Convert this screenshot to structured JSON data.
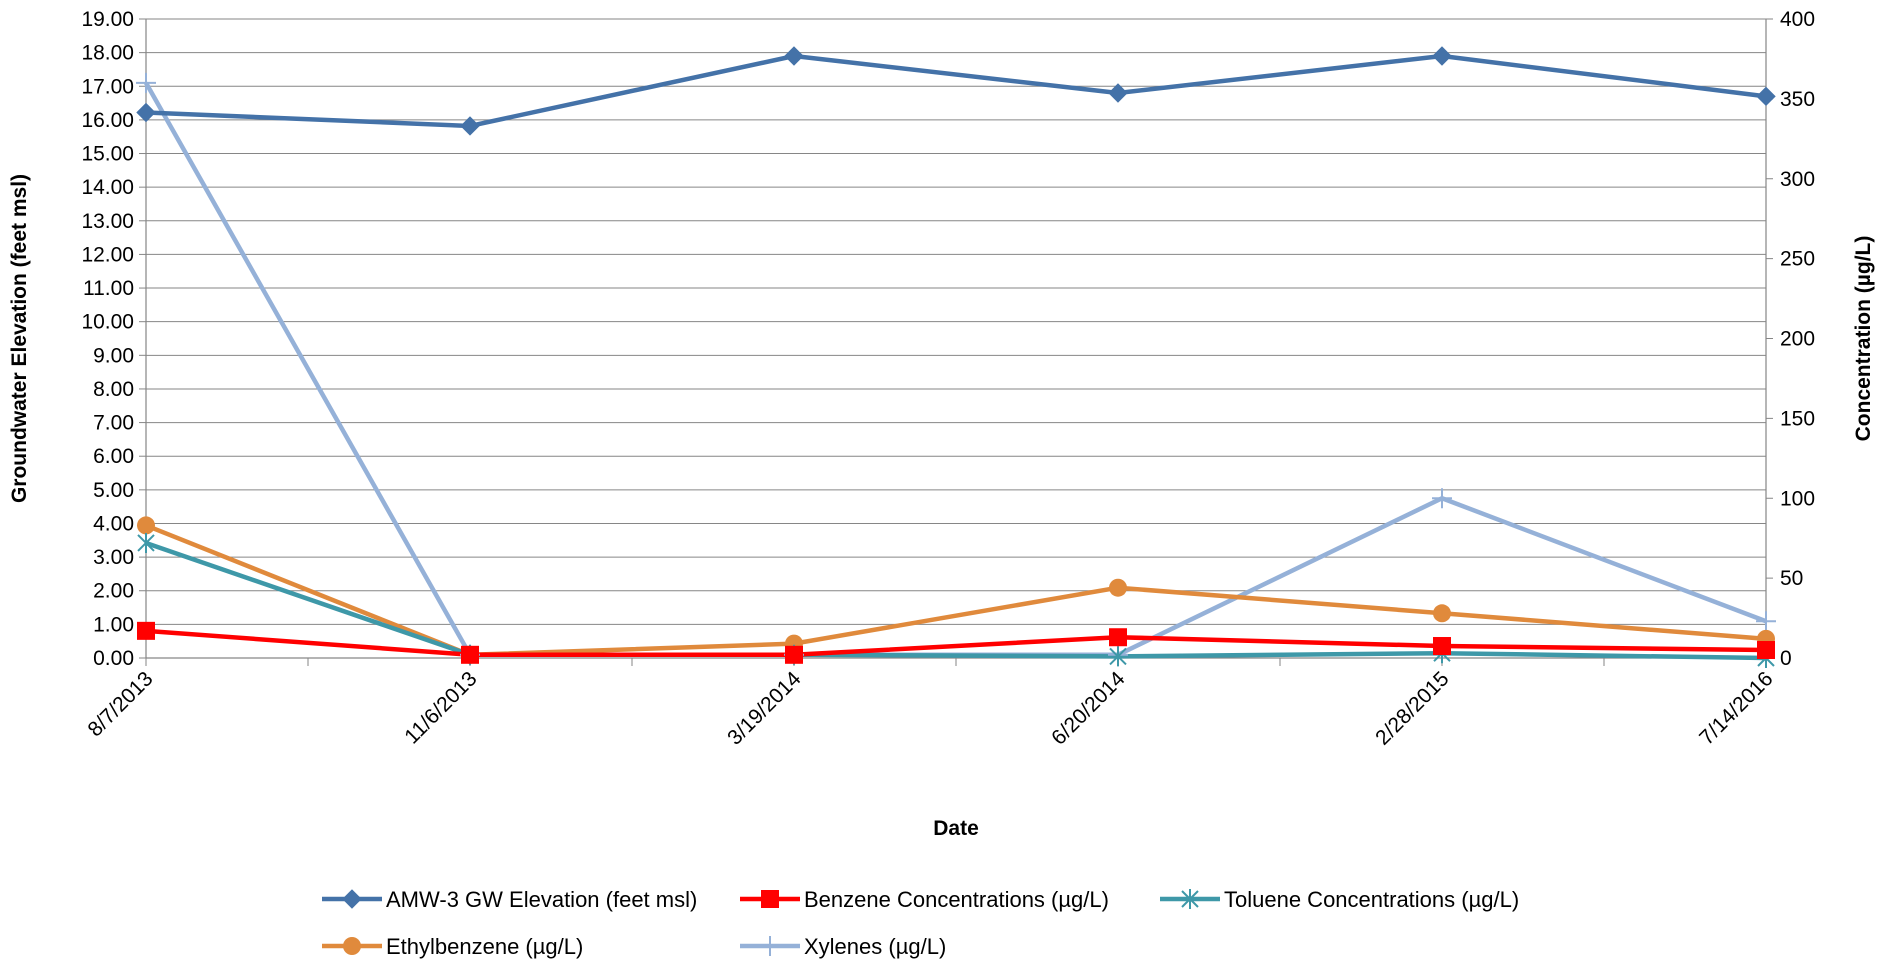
{
  "chart_data": {
    "type": "line",
    "xlabel": "Date",
    "ylabel_left": "Groundwater Elevation (feet msl)",
    "ylabel_right": "Concentration (µg/L)",
    "categories": [
      "8/7/2013",
      "11/6/2013",
      "3/19/2014",
      "6/20/2014",
      "2/28/2015",
      "7/14/2016"
    ],
    "y_left": {
      "range": [
        0,
        19
      ],
      "ticks": [
        "0.00",
        "1.00",
        "2.00",
        "3.00",
        "4.00",
        "5.00",
        "6.00",
        "7.00",
        "8.00",
        "9.00",
        "10.00",
        "11.00",
        "12.00",
        "13.00",
        "14.00",
        "15.00",
        "16.00",
        "17.00",
        "18.00",
        "19.00"
      ]
    },
    "y_right": {
      "range": [
        0,
        400
      ],
      "ticks": [
        "0",
        "50",
        "100",
        "150",
        "200",
        "250",
        "300",
        "350",
        "400"
      ]
    },
    "grid": "horizontal",
    "legend_position": "bottom",
    "series": [
      {
        "name": "AMW-3 GW Elevation (feet msl)",
        "axis": "left",
        "color": "#4472A8",
        "marker": "diamond",
        "values": [
          16.22,
          15.82,
          17.9,
          16.8,
          17.9,
          16.7
        ]
      },
      {
        "name": "Benzene Concentrations (µg/L)",
        "axis": "right",
        "color": "#FF0000",
        "marker": "square",
        "values": [
          17,
          2,
          2,
          13,
          7.5,
          5
        ]
      },
      {
        "name": "Toluene Concentrations  (µg/L)",
        "axis": "right",
        "color": "#3E98A8",
        "marker": "star",
        "values": [
          72,
          2,
          2,
          1,
          3,
          0
        ]
      },
      {
        "name": "Ethylbenzene  (µg/L)",
        "axis": "right",
        "color": "#E08A3C",
        "marker": "circle",
        "values": [
          83,
          2,
          9,
          44,
          28,
          12
        ]
      },
      {
        "name": "Xylenes  (µg/L)",
        "axis": "right",
        "color": "#95B1D8",
        "marker": "plus",
        "values": [
          360,
          2,
          2,
          2,
          100,
          23
        ]
      }
    ]
  }
}
